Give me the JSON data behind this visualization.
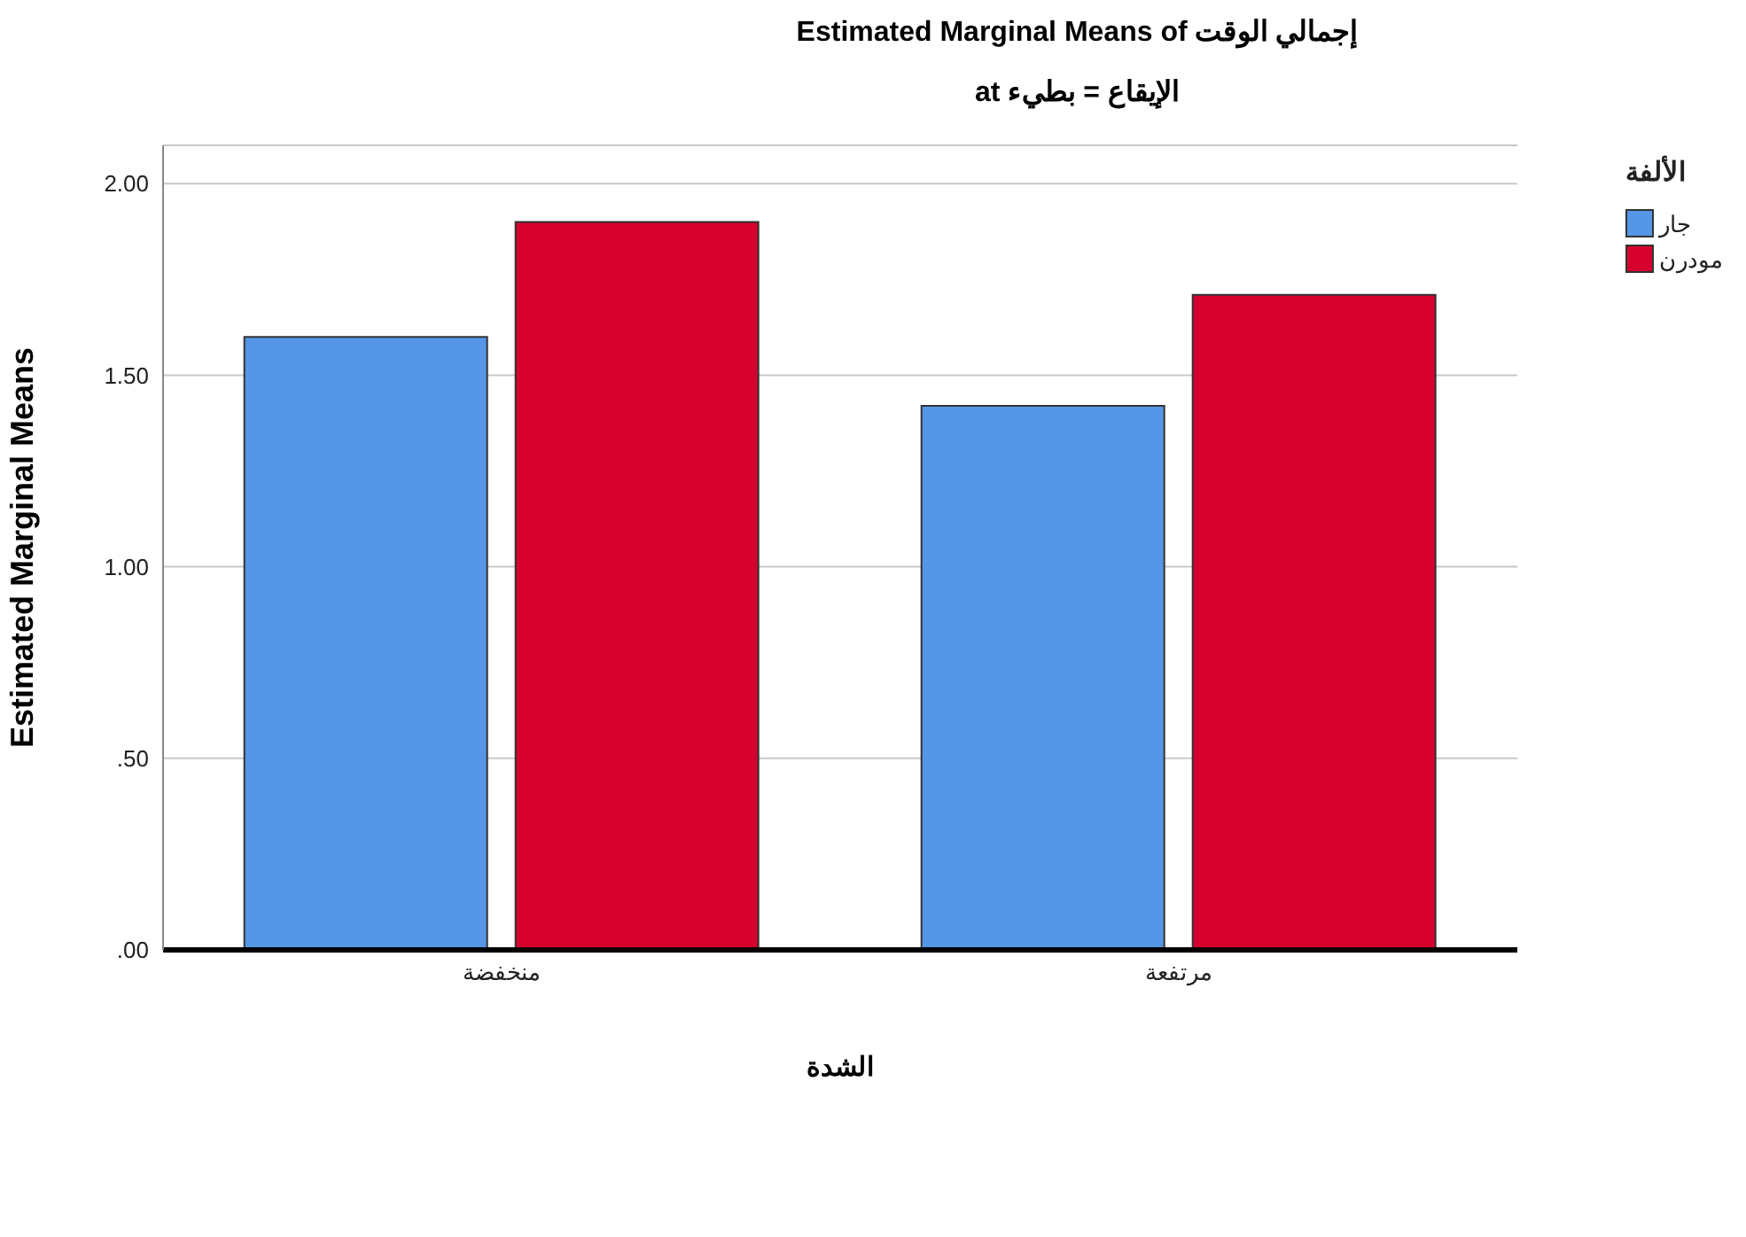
{
  "chart_data": {
    "type": "bar",
    "title": "Estimated Marginal Means of إجمالي الوقت",
    "subtitle": "الإيقاع = بطيء at",
    "xlabel": "الشدة",
    "ylabel": "Estimated Marginal Means",
    "legend_title": "الألفة",
    "categories": [
      "منخفضة",
      "مرتفعة"
    ],
    "series": [
      {
        "name": "جار",
        "color": "#5596e6",
        "values": [
          1.6,
          1.42
        ]
      },
      {
        "name": "مودرن",
        "color": "#d6002e",
        "values": [
          1.9,
          1.71
        ]
      }
    ],
    "ylim": [
      0,
      2.1
    ],
    "yticks": [
      {
        "value": 0,
        "label": ".00"
      },
      {
        "value": 0.5,
        "label": ".50"
      },
      {
        "value": 1,
        "label": "1.00"
      },
      {
        "value": 1.5,
        "label": "1.50"
      },
      {
        "value": 2,
        "label": "2.00"
      }
    ],
    "grid": "y",
    "legend": "top right"
  }
}
